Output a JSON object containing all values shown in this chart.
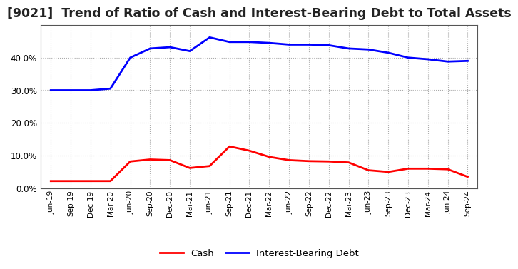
{
  "title": "[9021]  Trend of Ratio of Cash and Interest-Bearing Debt to Total Assets",
  "x_labels": [
    "Jun-19",
    "Sep-19",
    "Dec-19",
    "Mar-20",
    "Jun-20",
    "Sep-20",
    "Dec-20",
    "Mar-21",
    "Jun-21",
    "Sep-21",
    "Dec-21",
    "Mar-22",
    "Jun-22",
    "Sep-22",
    "Dec-22",
    "Mar-23",
    "Jun-23",
    "Sep-23",
    "Dec-23",
    "Mar-24",
    "Jun-24",
    "Sep-24"
  ],
  "cash": [
    0.022,
    0.022,
    0.022,
    0.022,
    0.082,
    0.088,
    0.086,
    0.062,
    0.068,
    0.128,
    0.115,
    0.096,
    0.086,
    0.083,
    0.082,
    0.079,
    0.055,
    0.05,
    0.06,
    0.06,
    0.058,
    0.035
  ],
  "debt": [
    0.3,
    0.3,
    0.3,
    0.305,
    0.4,
    0.428,
    0.432,
    0.42,
    0.462,
    0.448,
    0.448,
    0.445,
    0.44,
    0.44,
    0.438,
    0.428,
    0.425,
    0.415,
    0.4,
    0.395,
    0.388,
    0.39
  ],
  "cash_color": "#ff0000",
  "debt_color": "#0000ff",
  "ylim": [
    0.0,
    0.5
  ],
  "yticks": [
    0.0,
    0.1,
    0.2,
    0.3,
    0.4
  ],
  "background_color": "#ffffff",
  "grid_color": "#aaaaaa",
  "title_fontsize": 12.5,
  "legend_labels": [
    "Cash",
    "Interest-Bearing Debt"
  ],
  "spine_color": "#555555",
  "line_width": 2.0
}
